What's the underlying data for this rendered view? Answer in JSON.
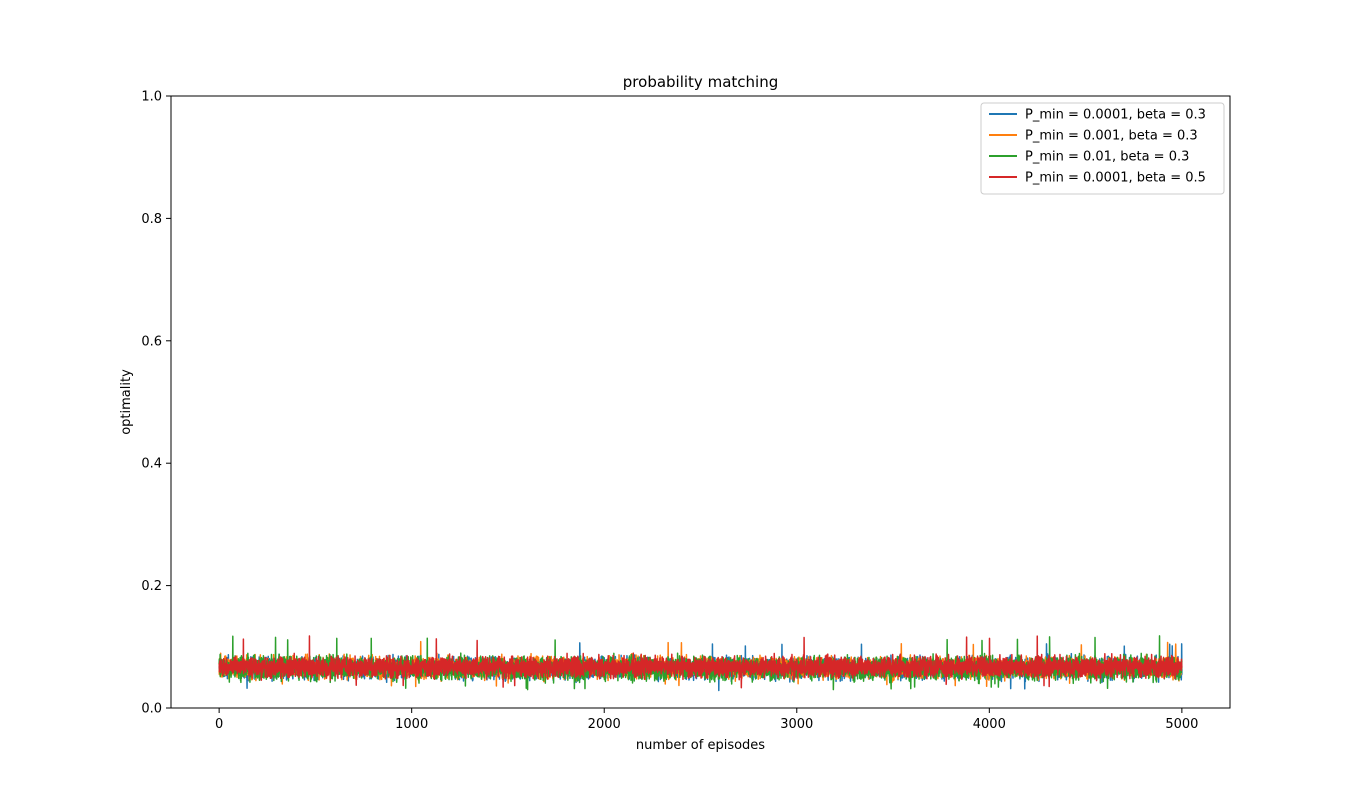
{
  "chart_data": {
    "type": "line",
    "title": "probability matching",
    "xlabel": "number of episodes",
    "ylabel": "optimality",
    "xlim": [
      -250,
      5250
    ],
    "ylim": [
      0.0,
      1.0
    ],
    "xticks": [
      0,
      1000,
      2000,
      3000,
      4000,
      5000
    ],
    "xtick_labels": [
      "0",
      "1000",
      "2000",
      "3000",
      "4000",
      "5000"
    ],
    "yticks": [
      0.0,
      0.2,
      0.4,
      0.6,
      0.8,
      1.0
    ],
    "ytick_labels": [
      "0.0",
      "0.2",
      "0.4",
      "0.6",
      "0.8",
      "1.0"
    ],
    "grid": false,
    "legend_position": "top-right",
    "x_range": [
      0,
      5000
    ],
    "series": [
      {
        "name": "P_min = 0.0001, beta = 0.3",
        "color": "#1f77b4",
        "mean": 0.065,
        "spread": 0.016,
        "min": 0.027,
        "max": 0.107
      },
      {
        "name": "P_min = 0.001, beta = 0.3",
        "color": "#ff7f0e",
        "mean": 0.066,
        "spread": 0.016,
        "min": 0.035,
        "max": 0.11
      },
      {
        "name": "P_min = 0.01, beta = 0.3",
        "color": "#2ca02c",
        "mean": 0.065,
        "spread": 0.017,
        "min": 0.03,
        "max": 0.118
      },
      {
        "name": "P_min = 0.0001, beta = 0.5",
        "color": "#d62728",
        "mean": 0.067,
        "spread": 0.015,
        "min": 0.033,
        "max": 0.118
      }
    ]
  }
}
